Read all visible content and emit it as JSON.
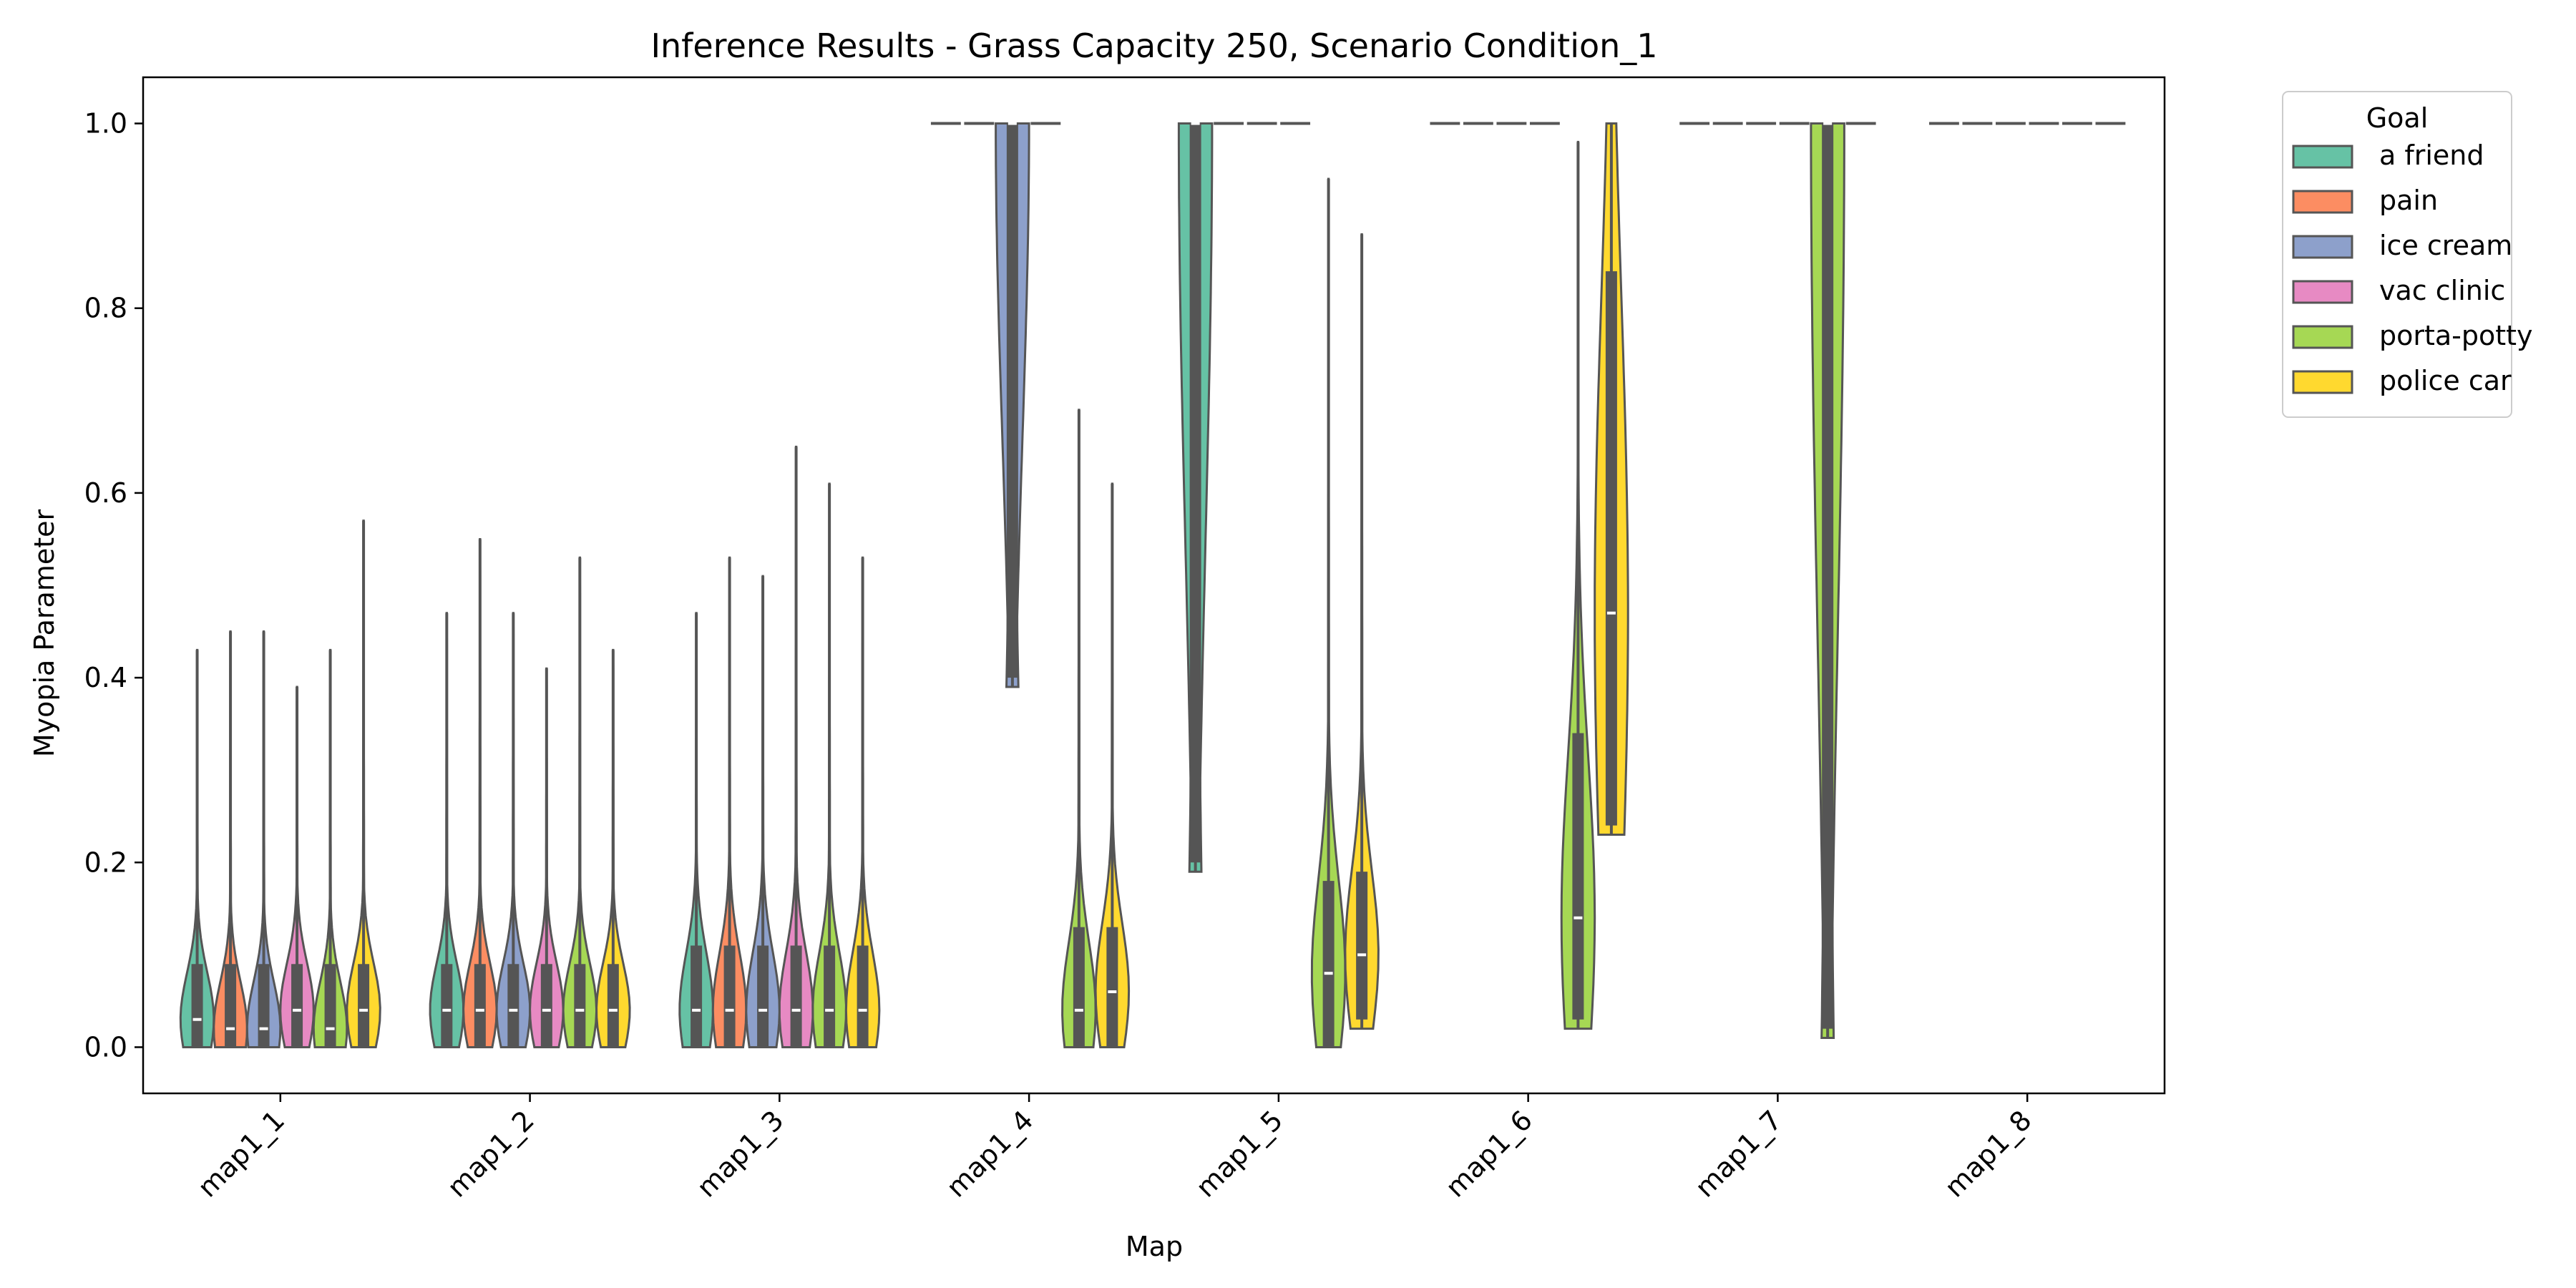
{
  "chart_data": {
    "type": "violin",
    "title": "Inference Results - Grass Capacity 250, Scenario Condition_1",
    "xlabel": "Map",
    "ylabel": "Myopia Parameter",
    "ylim": [
      -0.05,
      1.05
    ],
    "yticks": [
      "0.0",
      "0.2",
      "0.4",
      "0.6",
      "0.8",
      "1.0"
    ],
    "categories": [
      "map1_1",
      "map1_2",
      "map1_3",
      "map1_4",
      "map1_5",
      "map1_6",
      "map1_7",
      "map1_8"
    ],
    "legend": {
      "title": "Goal",
      "placement": "outside-top-right",
      "entries": [
        {
          "name": "a friend",
          "color": "#66c2a5"
        },
        {
          "name": "pain",
          "color": "#fc8d62"
        },
        {
          "name": "ice cream",
          "color": "#8da0cb"
        },
        {
          "name": "vac clinic",
          "color": "#e78ac3"
        },
        {
          "name": "porta-potty",
          "color": "#a6d854"
        },
        {
          "name": "police car",
          "color": "#ffd92f"
        }
      ]
    },
    "series": [
      {
        "name": "a friend",
        "values": [
          {
            "max": 0.43,
            "q1": 0.0,
            "median": 0.03,
            "q3": 0.09
          },
          {
            "max": 0.47,
            "q1": 0.0,
            "median": 0.04,
            "q3": 0.09
          },
          {
            "max": 0.47,
            "q1": 0.0,
            "median": 0.04,
            "q3": 0.11
          },
          {
            "max": 1.0,
            "q1": 1.0,
            "median": 1.0,
            "q3": 1.0
          },
          {
            "max": 1.0,
            "q1": 0.2,
            "median": 1.0,
            "q3": 1.0
          },
          {
            "max": 1.0,
            "q1": 1.0,
            "median": 1.0,
            "q3": 1.0
          },
          {
            "max": 1.0,
            "q1": 1.0,
            "median": 1.0,
            "q3": 1.0
          },
          {
            "max": 1.0,
            "q1": 1.0,
            "median": 1.0,
            "q3": 1.0
          }
        ]
      },
      {
        "name": "pain",
        "values": [
          {
            "max": 0.45,
            "q1": 0.0,
            "median": 0.02,
            "q3": 0.09
          },
          {
            "max": 0.55,
            "q1": 0.0,
            "median": 0.04,
            "q3": 0.09
          },
          {
            "max": 0.53,
            "q1": 0.0,
            "median": 0.04,
            "q3": 0.11
          },
          {
            "max": 1.0,
            "q1": 1.0,
            "median": 1.0,
            "q3": 1.0
          },
          {
            "max": 1.0,
            "q1": 1.0,
            "median": 1.0,
            "q3": 1.0
          },
          {
            "max": 1.0,
            "q1": 1.0,
            "median": 1.0,
            "q3": 1.0
          },
          {
            "max": 1.0,
            "q1": 1.0,
            "median": 1.0,
            "q3": 1.0
          },
          {
            "max": 1.0,
            "q1": 1.0,
            "median": 1.0,
            "q3": 1.0
          }
        ]
      },
      {
        "name": "ice cream",
        "values": [
          {
            "max": 0.45,
            "q1": 0.0,
            "median": 0.02,
            "q3": 0.09
          },
          {
            "max": 0.47,
            "q1": 0.0,
            "median": 0.04,
            "q3": 0.09
          },
          {
            "max": 0.51,
            "q1": 0.0,
            "median": 0.04,
            "q3": 0.11
          },
          {
            "max": 1.0,
            "q1": 0.4,
            "median": 1.0,
            "q3": 1.0
          },
          {
            "max": 1.0,
            "q1": 1.0,
            "median": 1.0,
            "q3": 1.0
          },
          {
            "max": 1.0,
            "q1": 1.0,
            "median": 1.0,
            "q3": 1.0
          },
          {
            "max": 1.0,
            "q1": 1.0,
            "median": 1.0,
            "q3": 1.0
          },
          {
            "max": 1.0,
            "q1": 1.0,
            "median": 1.0,
            "q3": 1.0
          }
        ]
      },
      {
        "name": "vac clinic",
        "values": [
          {
            "max": 0.39,
            "q1": 0.0,
            "median": 0.04,
            "q3": 0.09
          },
          {
            "max": 0.41,
            "q1": 0.0,
            "median": 0.04,
            "q3": 0.09
          },
          {
            "max": 0.65,
            "q1": 0.0,
            "median": 0.04,
            "q3": 0.11
          },
          {
            "max": 1.0,
            "q1": 1.0,
            "median": 1.0,
            "q3": 1.0
          },
          {
            "max": 1.0,
            "q1": 1.0,
            "median": 1.0,
            "q3": 1.0
          },
          {
            "max": 1.0,
            "q1": 1.0,
            "median": 1.0,
            "q3": 1.0
          },
          {
            "max": 1.0,
            "q1": 1.0,
            "median": 1.0,
            "q3": 1.0
          },
          {
            "max": 1.0,
            "q1": 1.0,
            "median": 1.0,
            "q3": 1.0
          }
        ]
      },
      {
        "name": "porta-potty",
        "values": [
          {
            "max": 0.43,
            "q1": 0.0,
            "median": 0.02,
            "q3": 0.09
          },
          {
            "max": 0.53,
            "q1": 0.0,
            "median": 0.04,
            "q3": 0.09
          },
          {
            "max": 0.61,
            "q1": 0.0,
            "median": 0.04,
            "q3": 0.11
          },
          {
            "max": 0.69,
            "q1": 0.0,
            "median": 0.04,
            "q3": 0.13
          },
          {
            "max": 0.94,
            "q1": 0.0,
            "median": 0.08,
            "q3": 0.18
          },
          {
            "max": 0.98,
            "q1": 0.03,
            "median": 0.14,
            "q3": 0.34
          },
          {
            "max": 1.0,
            "q1": 0.02,
            "median": 1.0,
            "q3": 1.0
          },
          {
            "max": 1.0,
            "q1": 1.0,
            "median": 1.0,
            "q3": 1.0
          }
        ]
      },
      {
        "name": "police car",
        "values": [
          {
            "max": 0.57,
            "q1": 0.0,
            "median": 0.04,
            "q3": 0.09
          },
          {
            "max": 0.43,
            "q1": 0.0,
            "median": 0.04,
            "q3": 0.09
          },
          {
            "max": 0.53,
            "q1": 0.0,
            "median": 0.04,
            "q3": 0.11
          },
          {
            "max": 0.61,
            "q1": 0.0,
            "median": 0.06,
            "q3": 0.13
          },
          {
            "max": 0.88,
            "q1": 0.03,
            "median": 0.1,
            "q3": 0.19
          },
          {
            "max": 1.0,
            "q1": 0.24,
            "median": 0.47,
            "q3": 0.84
          },
          {
            "max": 1.0,
            "q1": 1.0,
            "median": 1.0,
            "q3": 1.0
          },
          {
            "max": 1.0,
            "q1": 1.0,
            "median": 1.0,
            "q3": 1.0
          }
        ]
      }
    ],
    "extra_violins_note": ""
  }
}
